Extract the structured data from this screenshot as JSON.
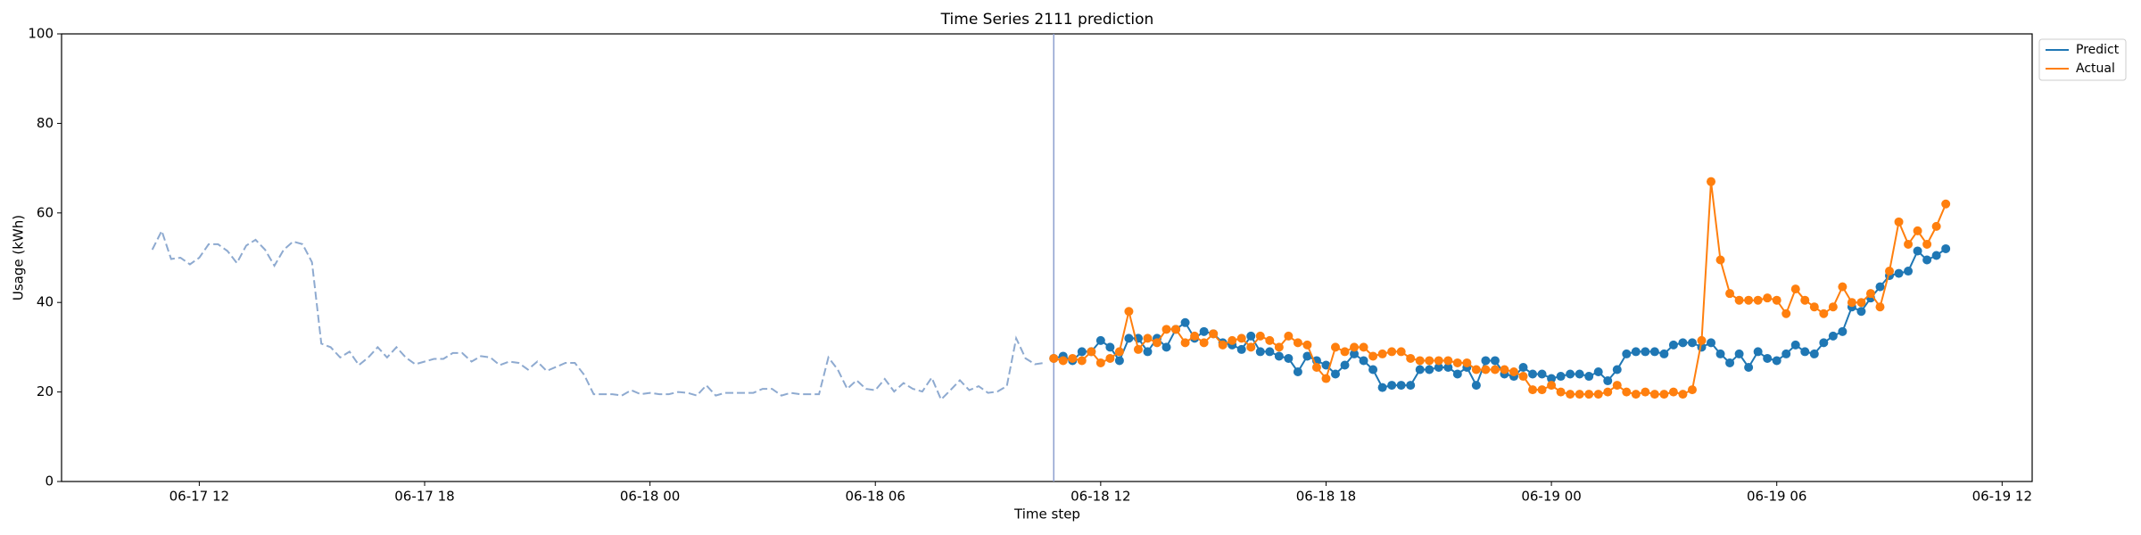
{
  "chart_data": {
    "type": "line",
    "title": "Time Series 2111 prediction",
    "xlabel": "Time step",
    "ylabel": "Usage (kWh)",
    "xlim": [
      "06-17 08:20",
      "06-19 12:48"
    ],
    "xticks": [
      {
        "value": "06-17 12:00",
        "label": "06-17 12"
      },
      {
        "value": "06-17 18:00",
        "label": "06-17 18"
      },
      {
        "value": "06-18 00:00",
        "label": "06-18 00"
      },
      {
        "value": "06-18 06:00",
        "label": "06-18 06"
      },
      {
        "value": "06-18 12:00",
        "label": "06-18 12"
      },
      {
        "value": "06-18 18:00",
        "label": "06-18 18"
      },
      {
        "value": "06-19 00:00",
        "label": "06-19 00"
      },
      {
        "value": "06-19 06:00",
        "label": "06-19 06"
      },
      {
        "value": "06-19 12:00",
        "label": "06-19 12"
      }
    ],
    "ylim": [
      0,
      100
    ],
    "yticks": [
      0,
      20,
      40,
      60,
      80,
      100
    ],
    "grid": false,
    "legend": "upper right outside",
    "history": {
      "color": "#8eaad0",
      "x": [
        "06-17 10:45",
        "06-17 11:00",
        "06-17 11:15",
        "06-17 11:30",
        "06-17 11:45",
        "06-17 12:00",
        "06-17 12:15",
        "06-17 12:30",
        "06-17 12:45",
        "06-17 13:00",
        "06-17 13:15",
        "06-17 13:30",
        "06-17 13:45",
        "06-17 14:00",
        "06-17 14:15",
        "06-17 14:30",
        "06-17 14:45",
        "06-17 15:00",
        "06-17 15:15",
        "06-17 15:30",
        "06-17 15:45",
        "06-17 16:00",
        "06-17 16:15",
        "06-17 16:30",
        "06-17 16:45",
        "06-17 17:00",
        "06-17 17:15",
        "06-17 17:30",
        "06-17 17:45",
        "06-17 18:00",
        "06-17 18:15",
        "06-17 18:30",
        "06-17 18:45",
        "06-17 19:00",
        "06-17 19:15",
        "06-17 19:30",
        "06-17 19:45",
        "06-17 20:00",
        "06-17 20:15",
        "06-17 20:30",
        "06-17 20:45",
        "06-17 21:00",
        "06-17 21:15",
        "06-17 21:30",
        "06-17 21:45",
        "06-17 22:00",
        "06-17 22:15",
        "06-17 22:30",
        "06-17 22:45",
        "06-17 23:00",
        "06-17 23:15",
        "06-17 23:30",
        "06-17 23:45",
        "06-18 00:00",
        "06-18 00:15",
        "06-18 00:30",
        "06-18 00:45",
        "06-18 01:00",
        "06-18 01:15",
        "06-18 01:30",
        "06-18 01:45",
        "06-18 02:00",
        "06-18 02:15",
        "06-18 02:30",
        "06-18 02:45",
        "06-18 03:00",
        "06-18 03:15",
        "06-18 03:30",
        "06-18 03:45",
        "06-18 04:00",
        "06-18 04:15",
        "06-18 04:30",
        "06-18 04:45",
        "06-18 05:00",
        "06-18 05:15",
        "06-18 05:30",
        "06-18 05:45",
        "06-18 06:00",
        "06-18 06:15",
        "06-18 06:30",
        "06-18 06:45",
        "06-18 07:00",
        "06-18 07:15",
        "06-18 07:30",
        "06-18 07:45",
        "06-18 08:00",
        "06-18 08:15",
        "06-18 08:30",
        "06-18 08:45",
        "06-18 09:00",
        "06-18 09:15",
        "06-18 09:30",
        "06-18 09:45",
        "06-18 10:00",
        "06-18 10:15",
        "06-18 10:30"
      ],
      "values": [
        51.8,
        56,
        49.7,
        50,
        48.5,
        50,
        53,
        53,
        51.5,
        48.8,
        52.7,
        54,
        51.8,
        48.2,
        51.8,
        53.6,
        53,
        49,
        30.8,
        30,
        27.7,
        29,
        26,
        27.7,
        30,
        27.7,
        30,
        27.7,
        26.2,
        26.8,
        27.4,
        27.4,
        28.7,
        28.7,
        26.8,
        28,
        27.7,
        26,
        26.8,
        26.5,
        25,
        26.8,
        24.7,
        25.6,
        26.5,
        26.5,
        23.8,
        19.5,
        19.5,
        19.5,
        19.2,
        20.4,
        19.5,
        19.8,
        19.5,
        19.5,
        20,
        19.8,
        19.2,
        21.5,
        19.2,
        19.8,
        19.8,
        19.8,
        19.8,
        20.7,
        20.7,
        19.2,
        19.8,
        19.5,
        19.5,
        19.5,
        27.7,
        25,
        20.7,
        22.6,
        20.7,
        20.4,
        22.9,
        20.1,
        22,
        20.7,
        20.1,
        23.2,
        18.3,
        20.4,
        22.6,
        20.4,
        21.3,
        19.8,
        20.1,
        21.3,
        32,
        27.5,
        26.2,
        26.5
      ]
    },
    "x": [
      "06-18 10:45",
      "06-18 11:00",
      "06-18 11:15",
      "06-18 11:30",
      "06-18 11:45",
      "06-18 12:00",
      "06-18 12:15",
      "06-18 12:30",
      "06-18 12:45",
      "06-18 13:00",
      "06-18 13:15",
      "06-18 13:30",
      "06-18 13:45",
      "06-18 14:00",
      "06-18 14:15",
      "06-18 14:30",
      "06-18 14:45",
      "06-18 15:00",
      "06-18 15:15",
      "06-18 15:30",
      "06-18 15:45",
      "06-18 16:00",
      "06-18 16:15",
      "06-18 16:30",
      "06-18 16:45",
      "06-18 17:00",
      "06-18 17:15",
      "06-18 17:30",
      "06-18 17:45",
      "06-18 18:00",
      "06-18 18:15",
      "06-18 18:30",
      "06-18 18:45",
      "06-18 19:00",
      "06-18 19:15",
      "06-18 19:30",
      "06-18 19:45",
      "06-18 20:00",
      "06-18 20:15",
      "06-18 20:30",
      "06-18 20:45",
      "06-18 21:00",
      "06-18 21:15",
      "06-18 21:30",
      "06-18 21:45",
      "06-18 22:00",
      "06-18 22:15",
      "06-18 22:30",
      "06-18 22:45",
      "06-18 23:00",
      "06-18 23:15",
      "06-18 23:30",
      "06-18 23:45",
      "06-19 00:00",
      "06-19 00:15",
      "06-19 00:30",
      "06-19 00:45",
      "06-19 01:00",
      "06-19 01:15",
      "06-19 01:30",
      "06-19 01:45",
      "06-19 02:00",
      "06-19 02:15",
      "06-19 02:30",
      "06-19 02:45",
      "06-19 03:00",
      "06-19 03:15",
      "06-19 03:30",
      "06-19 03:45",
      "06-19 04:00",
      "06-19 04:15",
      "06-19 04:30",
      "06-19 04:45",
      "06-19 05:00",
      "06-19 05:15",
      "06-19 05:30",
      "06-19 05:45",
      "06-19 06:00",
      "06-19 06:15",
      "06-19 06:30",
      "06-19 06:45",
      "06-19 07:00",
      "06-19 07:15",
      "06-19 07:30",
      "06-19 07:45",
      "06-19 08:00",
      "06-19 08:15",
      "06-19 08:30",
      "06-19 08:45",
      "06-19 09:00",
      "06-19 09:15",
      "06-19 09:30",
      "06-19 09:45",
      "06-19 10:00",
      "06-19 10:15",
      "06-19 10:30"
    ],
    "series": [
      {
        "name": "Predict",
        "color": "#1f77b4",
        "values": [
          27.5,
          28,
          27,
          29,
          29,
          31.5,
          30,
          27,
          32,
          32,
          29,
          32,
          30,
          34,
          35.5,
          32,
          33.5,
          33,
          31,
          30.5,
          29.5,
          32.5,
          29,
          29,
          28,
          27.5,
          24.5,
          28,
          27,
          26,
          24,
          26,
          28.5,
          27,
          25,
          21,
          21.5,
          21.5,
          21.5,
          25,
          25,
          25.5,
          25.5,
          24,
          25.5,
          21.5,
          27,
          27,
          24,
          23.5,
          25.5,
          24,
          24,
          23,
          23.5,
          24,
          24,
          23.5,
          24.5,
          22.5,
          25,
          28.5,
          29,
          29,
          29,
          28.5,
          30.5,
          31,
          31,
          30,
          31,
          28.5,
          26.5,
          28.5,
          25.5,
          29,
          27.5,
          27,
          28.5,
          30.5,
          29,
          28.5,
          31,
          32.5,
          33.5,
          39,
          38,
          41,
          43.5,
          46,
          46.5,
          47,
          51.5,
          49.5,
          50.5,
          52
        ]
      },
      {
        "name": "Actual",
        "color": "#ff7f0e",
        "values": [
          27.5,
          27,
          27.5,
          27,
          29,
          26.5,
          27.5,
          29,
          38,
          29.5,
          32,
          31,
          34,
          34,
          31,
          32.5,
          31,
          33,
          30.5,
          31.5,
          32,
          30,
          32.5,
          31.5,
          30,
          32.5,
          31,
          30.5,
          25.5,
          23,
          30,
          29,
          30,
          30,
          28,
          28.5,
          29,
          29,
          27.5,
          27,
          27,
          27,
          27,
          26.5,
          26.5,
          25,
          25,
          25,
          25,
          24.5,
          23.5,
          20.5,
          20.5,
          21.5,
          20,
          19.5,
          19.5,
          19.5,
          19.5,
          20,
          21.5,
          20,
          19.5,
          20,
          19.5,
          19.5,
          20,
          19.5,
          20.5,
          31.5,
          67,
          49.5,
          42,
          40.5,
          40.5,
          40.5,
          41,
          40.5,
          37.5,
          43,
          40.5,
          39,
          37.5,
          39,
          43.5,
          40,
          40,
          42,
          39,
          47,
          58,
          53,
          56,
          53,
          57,
          62
        ]
      }
    ]
  }
}
